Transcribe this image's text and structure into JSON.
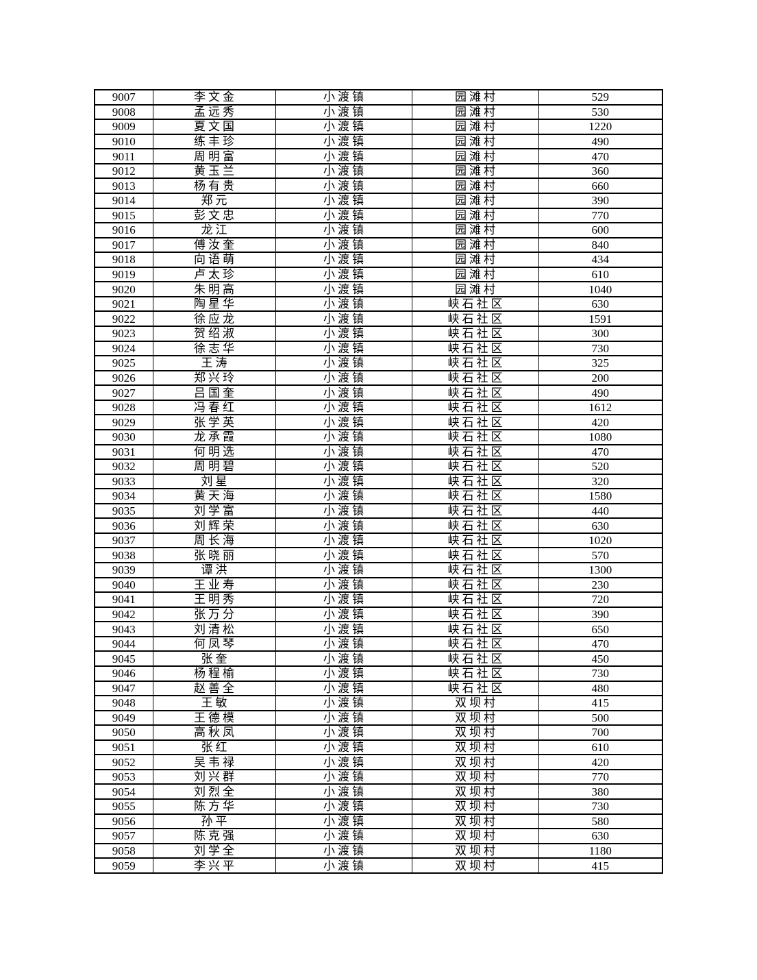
{
  "page": {
    "background_color": "#ffffff",
    "border_color": "#000000",
    "text_color": "#000000"
  },
  "table": {
    "rows": [
      [
        "9007",
        "李文金",
        "小渡镇",
        "园滩村",
        "529"
      ],
      [
        "9008",
        "孟远秀",
        "小渡镇",
        "园滩村",
        "530"
      ],
      [
        "9009",
        "夏文国",
        "小渡镇",
        "园滩村",
        "1220"
      ],
      [
        "9010",
        "练丰珍",
        "小渡镇",
        "园滩村",
        "490"
      ],
      [
        "9011",
        "周明富",
        "小渡镇",
        "园滩村",
        "470"
      ],
      [
        "9012",
        "黄玉兰",
        "小渡镇",
        "园滩村",
        "360"
      ],
      [
        "9013",
        "杨有贵",
        "小渡镇",
        "园滩村",
        "660"
      ],
      [
        "9014",
        "郑元",
        "小渡镇",
        "园滩村",
        "390"
      ],
      [
        "9015",
        "彭文忠",
        "小渡镇",
        "园滩村",
        "770"
      ],
      [
        "9016",
        "龙江",
        "小渡镇",
        "园滩村",
        "600"
      ],
      [
        "9017",
        "傅汝奎",
        "小渡镇",
        "园滩村",
        "840"
      ],
      [
        "9018",
        "向语萌",
        "小渡镇",
        "园滩村",
        "434"
      ],
      [
        "9019",
        "卢太珍",
        "小渡镇",
        "园滩村",
        "610"
      ],
      [
        "9020",
        "朱明高",
        "小渡镇",
        "园滩村",
        "1040"
      ],
      [
        "9021",
        "陶星华",
        "小渡镇",
        "峡石社区",
        "630"
      ],
      [
        "9022",
        "徐应龙",
        "小渡镇",
        "峡石社区",
        "1591"
      ],
      [
        "9023",
        "贺绍淑",
        "小渡镇",
        "峡石社区",
        "300"
      ],
      [
        "9024",
        "徐志华",
        "小渡镇",
        "峡石社区",
        "730"
      ],
      [
        "9025",
        "王涛",
        "小渡镇",
        "峡石社区",
        "325"
      ],
      [
        "9026",
        "郑兴玲",
        "小渡镇",
        "峡石社区",
        "200"
      ],
      [
        "9027",
        "吕国奎",
        "小渡镇",
        "峡石社区",
        "490"
      ],
      [
        "9028",
        "冯春红",
        "小渡镇",
        "峡石社区",
        "1612"
      ],
      [
        "9029",
        "张学英",
        "小渡镇",
        "峡石社区",
        "420"
      ],
      [
        "9030",
        "龙承霞",
        "小渡镇",
        "峡石社区",
        "1080"
      ],
      [
        "9031",
        "何明选",
        "小渡镇",
        "峡石社区",
        "470"
      ],
      [
        "9032",
        "周明碧",
        "小渡镇",
        "峡石社区",
        "520"
      ],
      [
        "9033",
        "刘星",
        "小渡镇",
        "峡石社区",
        "320"
      ],
      [
        "9034",
        "黄天海",
        "小渡镇",
        "峡石社区",
        "1580"
      ],
      [
        "9035",
        "刘学富",
        "小渡镇",
        "峡石社区",
        "440"
      ],
      [
        "9036",
        "刘辉荣",
        "小渡镇",
        "峡石社区",
        "630"
      ],
      [
        "9037",
        "周长海",
        "小渡镇",
        "峡石社区",
        "1020"
      ],
      [
        "9038",
        "张晓丽",
        "小渡镇",
        "峡石社区",
        "570"
      ],
      [
        "9039",
        "谭洪",
        "小渡镇",
        "峡石社区",
        "1300"
      ],
      [
        "9040",
        "王业寿",
        "小渡镇",
        "峡石社区",
        "230"
      ],
      [
        "9041",
        "王明秀",
        "小渡镇",
        "峡石社区",
        "720"
      ],
      [
        "9042",
        "张万分",
        "小渡镇",
        "峡石社区",
        "390"
      ],
      [
        "9043",
        "刘清松",
        "小渡镇",
        "峡石社区",
        "650"
      ],
      [
        "9044",
        "何凤琴",
        "小渡镇",
        "峡石社区",
        "470"
      ],
      [
        "9045",
        "张奎",
        "小渡镇",
        "峡石社区",
        "450"
      ],
      [
        "9046",
        "杨程榆",
        "小渡镇",
        "峡石社区",
        "730"
      ],
      [
        "9047",
        "赵善全",
        "小渡镇",
        "峡石社区",
        "480"
      ],
      [
        "9048",
        "王敏",
        "小渡镇",
        "双坝村",
        "415"
      ],
      [
        "9049",
        "王德模",
        "小渡镇",
        "双坝村",
        "500"
      ],
      [
        "9050",
        "高秋凤",
        "小渡镇",
        "双坝村",
        "700"
      ],
      [
        "9051",
        "张红",
        "小渡镇",
        "双坝村",
        "610"
      ],
      [
        "9052",
        "吴韦禄",
        "小渡镇",
        "双坝村",
        "420"
      ],
      [
        "9053",
        "刘兴群",
        "小渡镇",
        "双坝村",
        "770"
      ],
      [
        "9054",
        "刘烈全",
        "小渡镇",
        "双坝村",
        "380"
      ],
      [
        "9055",
        "陈方华",
        "小渡镇",
        "双坝村",
        "730"
      ],
      [
        "9056",
        "孙平",
        "小渡镇",
        "双坝村",
        "580"
      ],
      [
        "9057",
        "陈克强",
        "小渡镇",
        "双坝村",
        "630"
      ],
      [
        "9058",
        "刘学全",
        "小渡镇",
        "双坝村",
        "1180"
      ],
      [
        "9059",
        "李兴平",
        "小渡镇",
        "双坝村",
        "415"
      ]
    ]
  }
}
